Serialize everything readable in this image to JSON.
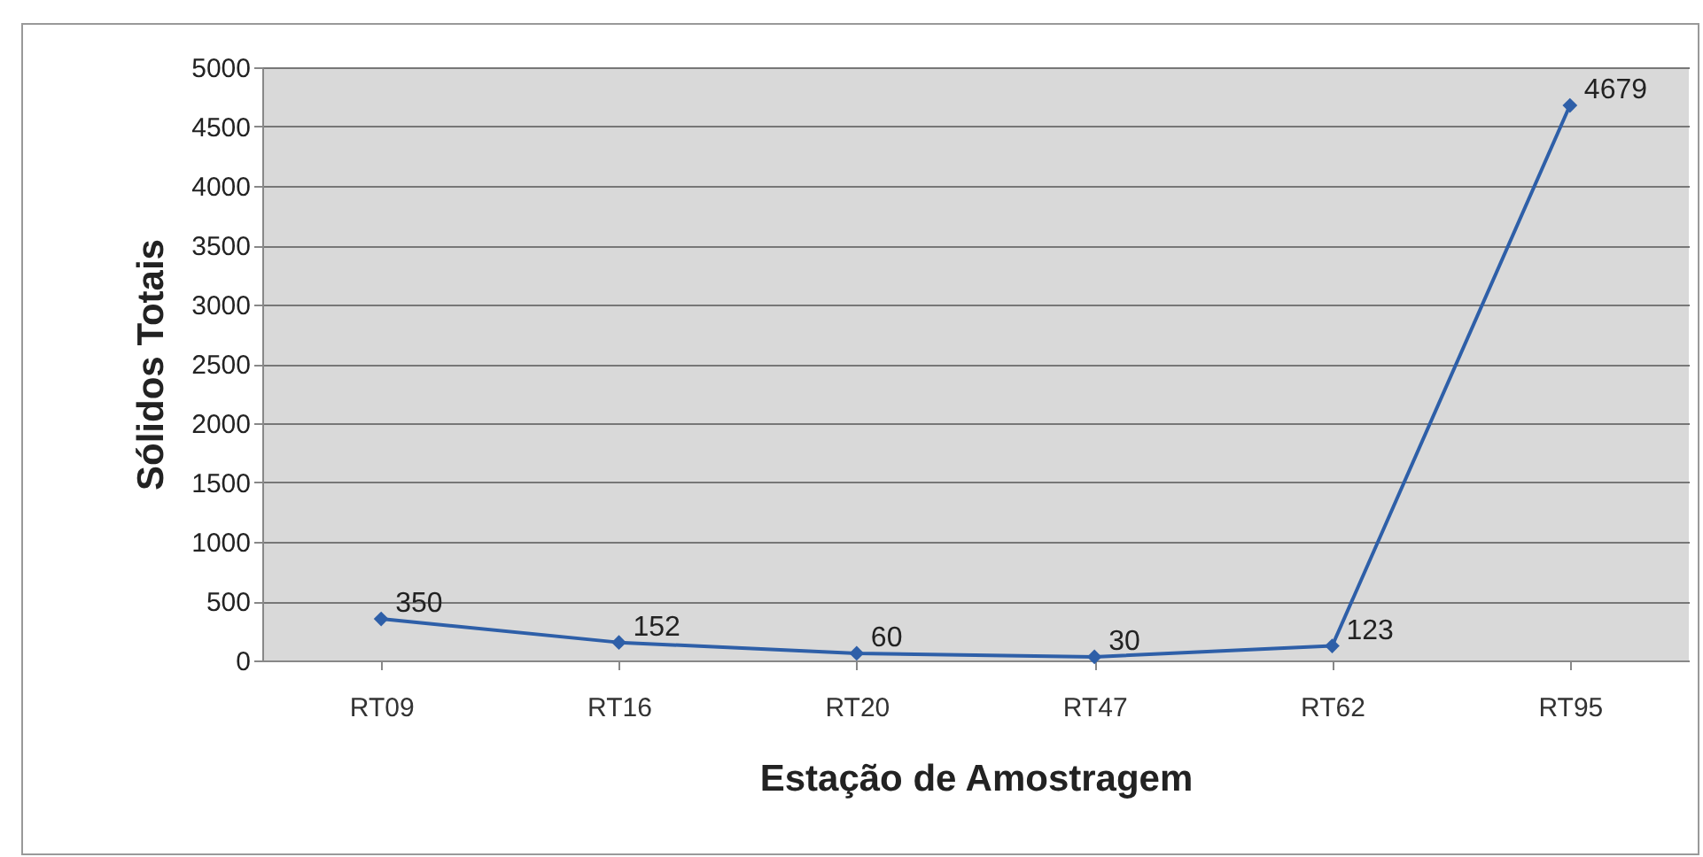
{
  "chart_data": {
    "type": "line",
    "xlabel": "Estação de Amostragem",
    "ylabel": "Sólidos Totais",
    "categories": [
      "RT09",
      "RT16",
      "RT20",
      "RT47",
      "RT62",
      "RT95"
    ],
    "series": [
      {
        "color": "#2e5fa8",
        "values": [
          350,
          152,
          60,
          30,
          123,
          4679
        ]
      }
    ],
    "ylim": [
      0,
      5000
    ],
    "yticks": [
      0,
      500,
      1000,
      1500,
      2000,
      2500,
      3000,
      3500,
      4000,
      4500,
      5000
    ],
    "grid": "y",
    "data_labels": true,
    "marker": "diamond",
    "line_style": "solid",
    "legend": false
  }
}
